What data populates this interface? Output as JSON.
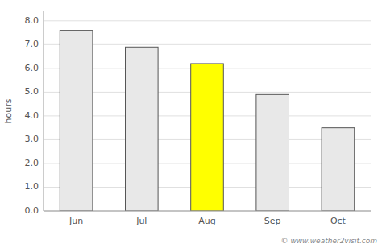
{
  "chart_data": {
    "type": "bar",
    "categories": [
      "Jun",
      "Jul",
      "Aug",
      "Sep",
      "Oct"
    ],
    "values": [
      7.6,
      6.9,
      6.2,
      4.9,
      3.5
    ],
    "colors": [
      "#e8e8e8",
      "#e8e8e8",
      "#ffff00",
      "#e8e8e8",
      "#e8e8e8"
    ],
    "ylabel": "hours",
    "ylim": [
      0,
      8.4
    ],
    "yticks": [
      {
        "value": 0.0,
        "label": "0.0"
      },
      {
        "value": 1.0,
        "label": "1.0"
      },
      {
        "value": 2.0,
        "label": "2.0"
      },
      {
        "value": 3.0,
        "label": "3.0"
      },
      {
        "value": 4.0,
        "label": "4.0"
      },
      {
        "value": 5.0,
        "label": "5.0"
      },
      {
        "value": 6.0,
        "label": "6.0"
      },
      {
        "value": 7.0,
        "label": "7.0"
      },
      {
        "value": 8.0,
        "label": "8.0"
      }
    ],
    "grid": true,
    "annotations": [
      "© www.weather2visit.com"
    ]
  }
}
